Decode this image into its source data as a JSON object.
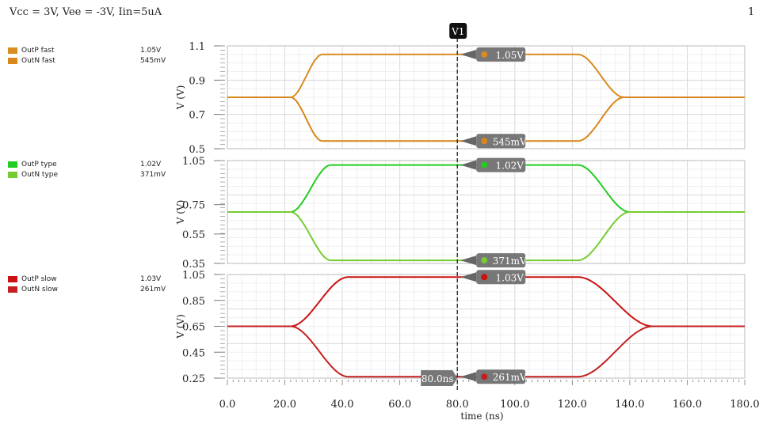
{
  "header": {
    "title": "Vcc = 3V, Vee = -3V, Iin=5uA",
    "page_number": "1"
  },
  "cursor": {
    "label": "V1",
    "x_readout": "80.0ns",
    "x_value": 80
  },
  "colors": {
    "fast": "#d98c1f",
    "fast_n": "#d9861a",
    "typeP": "#22cc22",
    "typeN": "#77cc33",
    "slowP": "#cc1111",
    "slowN": "#c42020"
  },
  "legend": [
    {
      "name": "OutP fast",
      "value": "1.05V",
      "color": "#d98c1f"
    },
    {
      "name": "OutN fast",
      "value": "545mV",
      "color": "#d9861a"
    },
    {
      "name": "OutP type",
      "value": "1.02V",
      "color": "#22cc22"
    },
    {
      "name": "OutN type",
      "value": "371mV",
      "color": "#77cc33"
    },
    {
      "name": "OutP slow",
      "value": "1.03V",
      "color": "#cc1111"
    },
    {
      "name": "OutN slow",
      "value": "261mV",
      "color": "#c42020"
    }
  ],
  "chart_data": [
    {
      "type": "line",
      "ylabel": "V (V)",
      "ylim": [
        0.5,
        1.1
      ],
      "yticks": [
        "0.5",
        "0.7",
        "0.9",
        "1.1"
      ],
      "xlim": [
        0,
        180
      ],
      "series": [
        {
          "name": "OutP fast",
          "color": "#d98c1f",
          "baseline": 0.8,
          "high": 1.05,
          "rise_start": 22,
          "rise_end": 33,
          "fall_start": 122,
          "fall_end": 138,
          "marker_label": "1.05V"
        },
        {
          "name": "OutN fast",
          "color": "#d9861a",
          "baseline": 0.8,
          "low": 0.545,
          "fall_start": 22,
          "fall_end": 33,
          "rise_start": 122,
          "rise_end": 138,
          "marker_label": "545mV"
        }
      ]
    },
    {
      "type": "line",
      "ylabel": "V (V)",
      "ylim": [
        0.35,
        1.05
      ],
      "yticks": [
        "0.35",
        "0.55",
        "0.75",
        "1.05"
      ],
      "xlim": [
        0,
        180
      ],
      "series": [
        {
          "name": "OutP type",
          "color": "#22cc22",
          "baseline": 0.7,
          "high": 1.02,
          "rise_start": 22,
          "rise_end": 36,
          "fall_start": 122,
          "fall_end": 140,
          "marker_label": "1.02V"
        },
        {
          "name": "OutN type",
          "color": "#77cc33",
          "baseline": 0.7,
          "low": 0.371,
          "fall_start": 22,
          "fall_end": 36,
          "rise_start": 122,
          "rise_end": 140,
          "marker_label": "371mV"
        }
      ]
    },
    {
      "type": "line",
      "ylabel": "V (V)",
      "ylim": [
        0.25,
        1.05
      ],
      "yticks": [
        "0.25",
        "0.45",
        "0.65",
        "0.85",
        "1.05"
      ],
      "xlim": [
        0,
        180
      ],
      "xlabel": "time (ns)",
      "xticks": [
        "0.0",
        "20.0",
        "40.0",
        "60.0",
        "80.0",
        "100.0",
        "120.0",
        "140.0",
        "160.0",
        "180.0"
      ],
      "series": [
        {
          "name": "OutP slow",
          "color": "#cc1111",
          "baseline": 0.65,
          "high": 1.03,
          "rise_start": 22,
          "rise_end": 42,
          "fall_start": 122,
          "fall_end": 148,
          "marker_label": "1.03V"
        },
        {
          "name": "OutN slow",
          "color": "#c42020",
          "baseline": 0.65,
          "low": 0.261,
          "fall_start": 22,
          "fall_end": 42,
          "rise_start": 122,
          "rise_end": 148,
          "marker_label": "261mV"
        }
      ]
    }
  ]
}
